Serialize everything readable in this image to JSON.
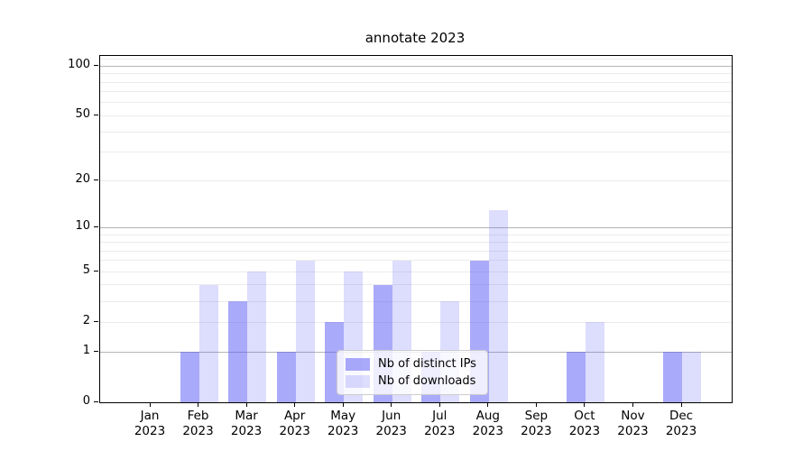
{
  "title": "annotate 2023",
  "chart_data": {
    "type": "bar",
    "title": "annotate 2023",
    "categories": [
      "Jan",
      "Feb",
      "Mar",
      "Apr",
      "May",
      "Jun",
      "Jul",
      "Aug",
      "Sep",
      "Oct",
      "Nov",
      "Dec"
    ],
    "year": "2023",
    "series": [
      {
        "name": "Nb of distinct IPs",
        "color": "rgba(85,85,245,0.5)",
        "values": [
          0,
          1,
          3,
          1,
          2,
          4,
          1,
          6,
          0,
          1,
          0,
          1
        ]
      },
      {
        "name": "Nb of downloads",
        "color": "rgba(85,85,245,0.2)",
        "values": [
          0,
          4,
          5,
          6,
          5,
          6,
          3,
          13,
          0,
          2,
          0,
          1
        ]
      }
    ],
    "yscale": "log(1+y)",
    "y_ticks": [
      0,
      1,
      2,
      5,
      10,
      20,
      50,
      100
    ],
    "y_major_gridlines": [
      1,
      10,
      100
    ],
    "y_minor_gridlines": [
      2,
      3,
      4,
      5,
      6,
      7,
      8,
      9,
      20,
      30,
      40,
      50,
      60,
      70,
      80,
      90,
      110
    ],
    "ylim": [
      0,
      114
    ],
    "xlabel": "",
    "ylabel": "",
    "grid": true,
    "legend_position": "lower center",
    "colors": {
      "bar_base": "#5555f5",
      "major_grid": "#b4b4b4",
      "minor_grid": "#ebebeb",
      "spine": "#000000"
    }
  },
  "legend": {
    "items": [
      {
        "label": "Nb of distinct IPs"
      },
      {
        "label": "Nb of downloads"
      }
    ]
  }
}
